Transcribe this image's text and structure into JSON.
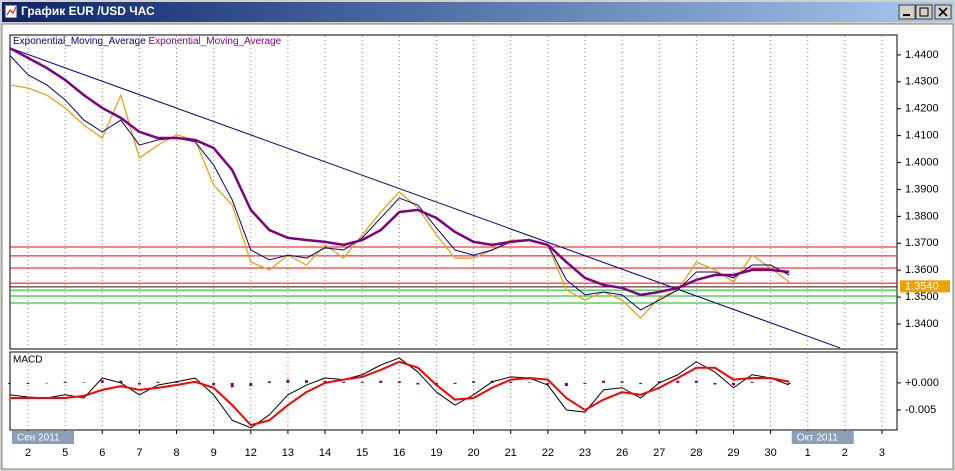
{
  "window": {
    "title": "График EUR /USD ЧАС"
  },
  "chart_data": [
    {
      "type": "line",
      "x": [
        -0.5,
        0,
        0.5,
        1,
        1.5,
        2,
        2.5,
        3,
        3.5,
        4,
        4.5,
        5,
        5.5,
        6,
        6.5,
        7,
        7.5,
        8,
        8.5,
        9,
        9.5,
        10,
        10.5,
        11,
        11.5,
        12,
        12.5,
        13,
        13.5,
        14,
        14.5,
        15,
        15.5,
        16,
        16.5,
        17,
        17.5,
        18,
        18.5,
        19,
        19.5,
        20,
        20.5
      ],
      "series": [
        {
          "color": "#e8a317",
          "width": 1.3,
          "values": [
            1.4289,
            1.4277,
            1.4251,
            1.4203,
            1.414,
            1.4091,
            1.4251,
            1.4017,
            1.4065,
            1.4103,
            1.4084,
            1.3917,
            1.3842,
            1.363,
            1.3601,
            1.3656,
            1.3619,
            1.3694,
            1.3645,
            1.3731,
            1.3816,
            1.3891,
            1.3831,
            1.3731,
            1.3645,
            1.3645,
            1.3675,
            1.3712,
            1.3712,
            1.3694,
            1.3526,
            1.3489,
            1.3519,
            1.3489,
            1.3422,
            1.3497,
            1.3526,
            1.363,
            1.3601,
            1.3556,
            1.3656,
            1.3608,
            1.3556
          ]
        },
        {
          "name": "Exponential_Moving_Average",
          "color": "#000080",
          "width": 1,
          "values": [
            1.44,
            1.4326,
            1.4289,
            1.4233,
            1.4158,
            1.4114,
            1.4158,
            1.4065,
            1.4084,
            1.4091,
            1.4077,
            1.3991,
            1.3861,
            1.3675,
            1.3638,
            1.3656,
            1.3645,
            1.3683,
            1.3675,
            1.372,
            1.3794,
            1.3868,
            1.3842,
            1.3757,
            1.3675,
            1.3656,
            1.3675,
            1.3705,
            1.3712,
            1.3694,
            1.3564,
            1.3508,
            1.3519,
            1.3508,
            1.3452,
            1.3489,
            1.3526,
            1.3593,
            1.3593,
            1.3571,
            1.3619,
            1.3619,
            1.3582
          ]
        },
        {
          "name": "Exponential_Moving_Average",
          "color": "#800080",
          "width": 2.5,
          "values": [
            1.4426,
            1.4389,
            1.4352,
            1.4307,
            1.4251,
            1.4203,
            1.4166,
            1.4114,
            1.4091,
            1.4091,
            1.4084,
            1.4054,
            1.3972,
            1.3824,
            1.3749,
            1.372,
            1.3712,
            1.3705,
            1.3694,
            1.3712,
            1.3749,
            1.3816,
            1.3824,
            1.3794,
            1.3742,
            1.3705,
            1.3694,
            1.3705,
            1.3712,
            1.3694,
            1.363,
            1.3571,
            1.3545,
            1.3534,
            1.3508,
            1.3519,
            1.3534,
            1.3564,
            1.3582,
            1.3582,
            1.3601,
            1.3601,
            1.3593
          ]
        }
      ],
      "trendline": {
        "x": [
          -0.485,
          21.87
        ],
        "values": [
          1.4426,
          1.3311
        ],
        "color": "#00008b"
      },
      "hlines": [
        {
          "value": 1.3686,
          "color": "#ff0000"
        },
        {
          "value": 1.3653,
          "color": "#ff0000"
        },
        {
          "value": 1.3608,
          "color": "#ff0000"
        },
        {
          "value": 1.3552,
          "color": "#ff0000"
        },
        {
          "value": 1.3538,
          "color": "#400000"
        },
        {
          "value": 1.3526,
          "color": "#00c000"
        },
        {
          "value": 1.3504,
          "color": "#00c000"
        },
        {
          "value": 1.3478,
          "color": "#00c000"
        }
      ],
      "price_label": {
        "value": 1.354,
        "label": "1.3540",
        "color": "#f0a000"
      },
      "xlim": [
        -0.485,
        23.404
      ],
      "ylim": [
        1.3307,
        1.4474
      ],
      "yticks": [
        {
          "value": 1.44,
          "label": "1.4400"
        },
        {
          "value": 1.43,
          "label": "1.4300"
        },
        {
          "value": 1.42,
          "label": "1.4200"
        },
        {
          "value": 1.41,
          "label": "1.4100"
        },
        {
          "value": 1.4,
          "label": "1.4000"
        },
        {
          "value": 1.39,
          "label": "1.3900"
        },
        {
          "value": 1.38,
          "label": "1.3800"
        },
        {
          "value": 1.37,
          "label": "1.3700"
        },
        {
          "value": 1.36,
          "label": "1.3600"
        },
        {
          "value": 1.35,
          "label": "1.3500"
        },
        {
          "value": 1.34,
          "label": "1.3400"
        }
      ],
      "grid": true
    },
    {
      "type": "macd",
      "title": "MACD",
      "x": [
        -0.5,
        0,
        0.5,
        1,
        1.5,
        2,
        2.5,
        3,
        3.5,
        4,
        4.5,
        5,
        5.5,
        6,
        6.5,
        7,
        7.5,
        8,
        8.5,
        9,
        9.5,
        10,
        10.5,
        11,
        11.5,
        12,
        12.5,
        13,
        13.5,
        14,
        14.5,
        15,
        15.5,
        16,
        16.5,
        17,
        17.5,
        18,
        18.5,
        19,
        19.5,
        20,
        20.5
      ],
      "series": [
        {
          "kind": "bar",
          "color": "#800080",
          "values": [
            -0.0002,
            -0.0002,
            -0.0001,
            0.0002,
            0.0001,
            0.0005,
            0.0004,
            -0.0003,
            0.0002,
            0.0003,
            0.0003,
            -0.0004,
            -0.0008,
            -0.0006,
            0.0003,
            0.0006,
            0.0005,
            0.0004,
            0.0002,
            0.0002,
            0.0004,
            0.0003,
            -0.0003,
            -0.0005,
            -0.0002,
            0.0003,
            0.0004,
            0.0002,
            0.0001,
            -0.0003,
            -0.0006,
            -0.0002,
            0.0004,
            0.0003,
            -0.0002,
            0.0003,
            0.0004,
            0.0004,
            -0.0003,
            -0.0004,
            0.0002,
            0.0001,
            -0.0002
          ]
        },
        {
          "kind": "line",
          "color": "#000000",
          "width": 1,
          "values": [
            -0.0022,
            -0.0026,
            -0.0028,
            -0.0022,
            -0.0028,
            0.0009,
            0,
            -0.0022,
            -0.0004,
            0.0002,
            0.0009,
            -0.0022,
            -0.0069,
            -0.0083,
            -0.0059,
            -0.0022,
            -0.0004,
            0.0009,
            0.0006,
            0.0015,
            0.0033,
            0.0046,
            0.002,
            -0.0017,
            -0.0041,
            -0.0022,
            0.0002,
            0.0011,
            0.0009,
            -0.0004,
            -0.005,
            -0.0054,
            -0.0013,
            -0.0009,
            -0.0028,
            0,
            0.0015,
            0.0039,
            0.002,
            -0.0009,
            0.0015,
            0.0009,
            -0.0004
          ]
        },
        {
          "kind": "line",
          "color": "#ff0000",
          "width": 2,
          "values": [
            -0.0028,
            -0.0028,
            -0.0028,
            -0.0028,
            -0.0024,
            -0.0013,
            -0.0006,
            -0.0013,
            -0.0009,
            -0.0004,
            0.0002,
            -0.0009,
            -0.0041,
            -0.0078,
            -0.0069,
            -0.0041,
            -0.0017,
            0,
            0.0006,
            0.0011,
            0.0024,
            0.0039,
            0.0028,
            -0.0004,
            -0.0031,
            -0.0028,
            -0.0009,
            0.0006,
            0.0009,
            0.0006,
            -0.0028,
            -0.005,
            -0.0031,
            -0.0017,
            -0.0022,
            -0.0009,
            0.0009,
            0.0028,
            0.0028,
            0.0006,
            0.0009,
            0.0009,
            0.0002
          ]
        }
      ],
      "xlim": [
        -0.485,
        23.404
      ],
      "ylim": [
        -0.0087,
        0.0057
      ],
      "yticks": [
        {
          "value": 0,
          "label": "+0.000"
        },
        {
          "value": -0.005,
          "label": "-0.005"
        }
      ],
      "xticks": [
        {
          "value": 0,
          "label": "2"
        },
        {
          "value": 1,
          "label": "5"
        },
        {
          "value": 2,
          "label": "6"
        },
        {
          "value": 3,
          "label": "7"
        },
        {
          "value": 4,
          "label": "8"
        },
        {
          "value": 5,
          "label": "9"
        },
        {
          "value": 6,
          "label": "12"
        },
        {
          "value": 7,
          "label": "13"
        },
        {
          "value": 8,
          "label": "14"
        },
        {
          "value": 9,
          "label": "15"
        },
        {
          "value": 10,
          "label": "16"
        },
        {
          "value": 11,
          "label": "19"
        },
        {
          "value": 12,
          "label": "20"
        },
        {
          "value": 13,
          "label": "21"
        },
        {
          "value": 14,
          "label": "22"
        },
        {
          "value": 15,
          "label": "23"
        },
        {
          "value": 16,
          "label": "26"
        },
        {
          "value": 17,
          "label": "27"
        },
        {
          "value": 18,
          "label": "28"
        },
        {
          "value": 19,
          "label": "29"
        },
        {
          "value": 20,
          "label": "30"
        },
        {
          "value": 21,
          "label": "1"
        },
        {
          "value": 22,
          "label": "2"
        },
        {
          "value": 23,
          "label": "3"
        }
      ],
      "period_labels": [
        {
          "value": 0,
          "label": "Сен 2011"
        },
        {
          "value": 21,
          "label": "Окт 2011"
        }
      ],
      "grid": true
    }
  ]
}
